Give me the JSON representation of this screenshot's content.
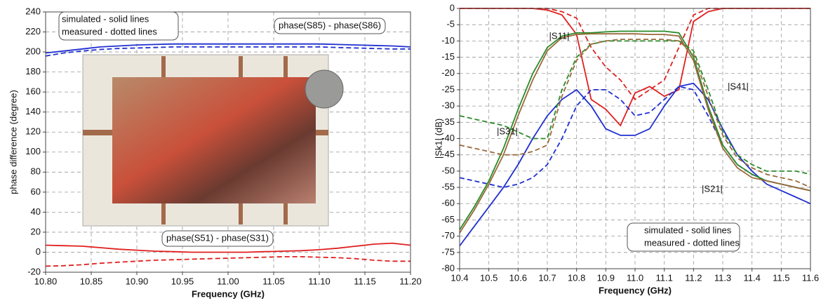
{
  "chart_data": [
    {
      "type": "line",
      "x_label": "Frequency (GHz)",
      "y_label": "phase difference (degree)",
      "xlim": [
        10.8,
        11.2
      ],
      "xticks": [
        {
          "value": 10.8,
          "label": "10.80"
        },
        10.85,
        {
          "value": 10.9,
          "label": "10.90"
        },
        10.95,
        {
          "value": 11,
          "label": "11.00"
        },
        11.05,
        {
          "value": 11.1,
          "label": "11.10"
        },
        11.15,
        {
          "value": 11.2,
          "label": "11.20"
        }
      ],
      "ylim": [
        -20,
        240
      ],
      "yticks": [
        -20,
        0,
        20,
        40,
        60,
        80,
        100,
        120,
        140,
        160,
        180,
        200,
        220,
        240
      ],
      "grid": true,
      "annotations": [
        "simulated - solid lines",
        "measured - dotted lines"
      ],
      "x": [
        10.8,
        10.82,
        10.84,
        10.86,
        10.88,
        10.9,
        10.92,
        10.94,
        10.96,
        10.98,
        11.0,
        11.02,
        11.04,
        11.06,
        11.08,
        11.1,
        11.12,
        11.14,
        11.16,
        11.18,
        11.2
      ],
      "series": [
        {
          "name": "phase(S85) - phase(S86)",
          "color": "#1f2fd0",
          "dashed": false,
          "values": [
            199,
            201,
            203,
            205,
            206,
            207,
            207.5,
            208,
            208,
            208,
            208,
            208,
            208,
            208,
            208,
            208,
            207.5,
            207,
            206.5,
            206,
            205
          ]
        },
        {
          "color": "#1f2fd0",
          "dashed": true,
          "values": [
            196,
            199,
            201,
            202.5,
            203.5,
            204,
            204.5,
            205,
            205,
            205,
            205,
            205,
            205,
            205,
            205,
            205,
            204.5,
            204,
            203.5,
            203,
            203
          ]
        },
        {
          "name": "phase(S51) - phase(S31)",
          "color": "#e02020",
          "dashed": false,
          "values": [
            7,
            6.5,
            6,
            4.5,
            3,
            2,
            1,
            0.5,
            0,
            0,
            0,
            0,
            0.5,
            1,
            1.5,
            2.5,
            4,
            6,
            8,
            9,
            7
          ]
        },
        {
          "color": "#e02020",
          "dashed": true,
          "values": [
            -14,
            -13.5,
            -12.5,
            -11,
            -10,
            -9,
            -8,
            -7.5,
            -7,
            -6.5,
            -6,
            -5.5,
            -5,
            -4.5,
            -4.5,
            -5,
            -5.5,
            -6.5,
            -8,
            -9,
            -9
          ]
        }
      ]
    },
    {
      "type": "line",
      "x_label": "Frequency (GHz)",
      "y_label": "|Sk1| (dB)",
      "xlim": [
        10.4,
        11.6
      ],
      "xticks": [
        10.4,
        10.5,
        10.6,
        10.7,
        10.8,
        10.9,
        {
          "value": 11,
          "label": "11.0"
        },
        11.1,
        11.2,
        11.3,
        11.4,
        11.5,
        11.6
      ],
      "ylim": [
        -80,
        0
      ],
      "yticks": [
        -80,
        -75,
        -70,
        -65,
        -60,
        -55,
        -50,
        -45,
        -40,
        -35,
        -30,
        -25,
        -20,
        -15,
        -10,
        -5,
        0
      ],
      "grid": true,
      "annotations": [
        "simulated - solid lines",
        "measured - dotted lines"
      ],
      "x": [
        10.4,
        10.45,
        10.5,
        10.55,
        10.6,
        10.65,
        10.7,
        10.75,
        10.8,
        10.85,
        10.9,
        10.95,
        11.0,
        11.05,
        11.1,
        11.15,
        11.2,
        11.25,
        11.3,
        11.35,
        11.4,
        11.45,
        11.5,
        11.55,
        11.6
      ],
      "series": [
        {
          "name": "|S11|",
          "color": "#e02020",
          "dashed": false,
          "values": [
            0,
            0,
            0,
            0,
            0,
            0,
            -0.5,
            -2,
            -8,
            -28,
            -31,
            -36,
            -26,
            -24,
            -27,
            -25,
            -4,
            -1,
            0,
            0,
            0,
            0,
            0,
            0,
            0
          ]
        },
        {
          "color": "#e02020",
          "dashed": true,
          "values": [
            0,
            0,
            0,
            0,
            0,
            0,
            0,
            -1,
            -3,
            -12,
            -18,
            -22,
            -28,
            -25,
            -22,
            -12,
            -2,
            0,
            0,
            0,
            0,
            0,
            0,
            0,
            0
          ]
        },
        {
          "name": "|S21|",
          "color": "#1f2fd0",
          "dashed": false,
          "values": [
            -73,
            -67,
            -61,
            -55,
            -48,
            -40,
            -33,
            -28,
            -25,
            -30,
            -37,
            -39,
            -39,
            -37,
            -30,
            -24,
            -23,
            -28,
            -37,
            -45,
            -50,
            -54,
            -56,
            -58,
            -60
          ]
        },
        {
          "color": "#1f2fd0",
          "dashed": true,
          "values": [
            -52,
            -53,
            -54,
            -55,
            -54,
            -52,
            -48,
            -40,
            -30,
            -25,
            -25,
            -28,
            -33,
            -32,
            -28,
            -24,
            -25,
            -33,
            -42,
            -48,
            -51,
            -53,
            -54,
            -55,
            -56
          ]
        },
        {
          "name": "|S31|",
          "color": "#2a8a2a",
          "dashed": false,
          "values": [
            -68,
            -61,
            -53,
            -43,
            -31,
            -20,
            -12,
            -8.5,
            -7.5,
            -7.5,
            -7.2,
            -7,
            -7,
            -7,
            -7,
            -7.5,
            -15,
            -30,
            -42,
            -48,
            -51,
            -53,
            -54,
            -55,
            -56
          ]
        },
        {
          "color": "#2a8a2a",
          "dashed": true,
          "values": [
            -33,
            -34,
            -35,
            -36,
            -38,
            -40,
            -40,
            -25,
            -15,
            -11,
            -10,
            -10,
            -10,
            -10,
            -10,
            -10,
            -13,
            -25,
            -38,
            -45,
            -48,
            -50,
            -50,
            -50,
            -51
          ]
        },
        {
          "name": "|S41|",
          "color": "#9a6a3a",
          "dashed": false,
          "values": [
            -69,
            -62,
            -54,
            -45,
            -33,
            -22,
            -13,
            -9,
            -8,
            -7.8,
            -7.8,
            -7.8,
            -7.8,
            -8,
            -8,
            -8.5,
            -16,
            -31,
            -43,
            -49,
            -52,
            -53,
            -54,
            -55,
            -56
          ]
        },
        {
          "color": "#9a6a3a",
          "dashed": true,
          "values": [
            -42,
            -43,
            -44,
            -45,
            -45,
            -44,
            -42,
            -27,
            -16,
            -11,
            -10,
            -9.5,
            -9.5,
            -9.5,
            -9.5,
            -10,
            -14,
            -27,
            -39,
            -46,
            -49,
            -51,
            -52,
            -53,
            -55
          ]
        }
      ]
    }
  ]
}
